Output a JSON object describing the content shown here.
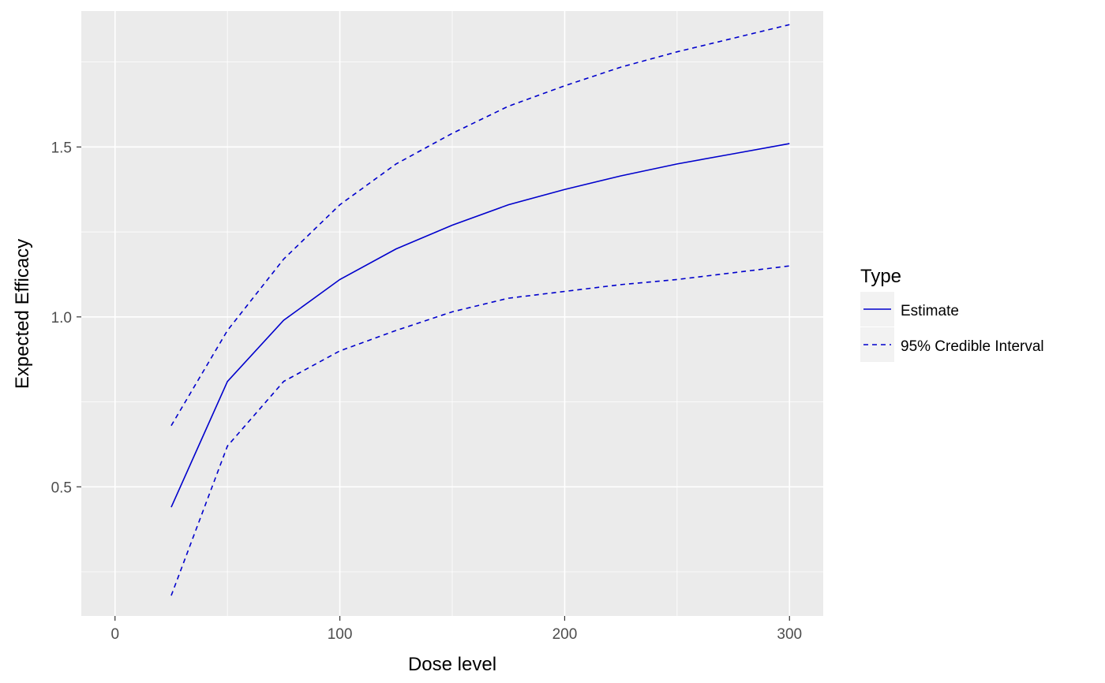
{
  "chart_data": {
    "type": "line",
    "title": "",
    "xlabel": "Dose level",
    "ylabel": "Expected Efficacy",
    "xlim": [
      -15,
      315
    ],
    "ylim": [
      0.12,
      1.9
    ],
    "x_ticks": [
      0,
      100,
      200,
      300
    ],
    "x_tick_labels": [
      "0",
      "100",
      "200",
      "300"
    ],
    "y_ticks": [
      0.5,
      1.0,
      1.5
    ],
    "y_tick_labels": [
      "0.5",
      "1.0",
      "1.5"
    ],
    "x_minor_ticks": [
      50,
      150,
      250
    ],
    "y_minor_ticks": [
      0.25,
      0.75,
      1.25,
      1.75
    ],
    "grid": true,
    "panel_background": "#ebebeb",
    "grid_color": "#ffffff",
    "line_color": "#0000cc",
    "legend": {
      "title": "Type",
      "placement": "right",
      "entries": [
        {
          "label": "Estimate",
          "linetype": "solid"
        },
        {
          "label": "95% Credible Interval",
          "linetype": "dashed"
        }
      ]
    },
    "x": [
      25,
      50,
      75,
      100,
      125,
      150,
      175,
      200,
      225,
      250,
      275,
      300
    ],
    "series": [
      {
        "name": "Estimate",
        "linetype": "solid",
        "values": [
          0.44,
          0.81,
          0.99,
          1.11,
          1.2,
          1.27,
          1.33,
          1.375,
          1.415,
          1.45,
          1.48,
          1.51
        ]
      },
      {
        "name": "95% Credible Interval",
        "linetype": "dashed",
        "values": [
          0.68,
          0.96,
          1.17,
          1.33,
          1.45,
          1.54,
          1.62,
          1.68,
          1.735,
          1.78,
          1.82,
          1.86
        ]
      },
      {
        "name": "95% Credible Interval",
        "linetype": "dashed",
        "values": [
          0.18,
          0.62,
          0.81,
          0.9,
          0.96,
          1.015,
          1.055,
          1.075,
          1.095,
          1.11,
          1.13,
          1.15
        ]
      }
    ]
  }
}
